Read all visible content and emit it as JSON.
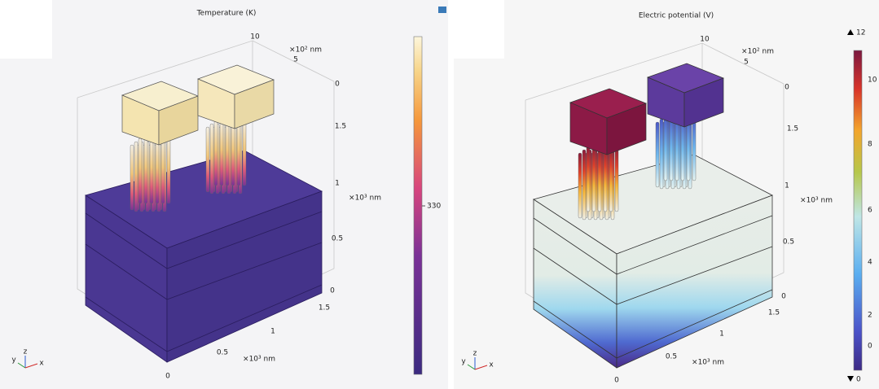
{
  "panels": [
    {
      "title": "Temperature (K)",
      "axes": {
        "top": [
          "10",
          "×10² nm",
          "5",
          "0"
        ],
        "right": [
          "1.5",
          "1",
          "×10³ nm",
          "0.5",
          "0"
        ],
        "bottom": [
          "1.5",
          "1",
          "0.5",
          "×10³ nm",
          "0"
        ]
      },
      "triad": [
        "y",
        "z",
        "x"
      ],
      "colorbar": {
        "labels": [
          "330"
        ]
      }
    },
    {
      "title": "Electric potential (V)",
      "axes": {
        "top": [
          "10",
          "×10² nm",
          "5",
          "0"
        ],
        "right": [
          "1.5",
          "1",
          "×10³ nm",
          "0.5",
          "0"
        ],
        "bottom": [
          "1.5",
          "1",
          "0.5",
          "×10³ nm",
          "0"
        ]
      },
      "triad": [
        "y",
        "z",
        "x"
      ],
      "colorbar": {
        "max_label": "12",
        "min_label": "0",
        "labels": [
          "10",
          "8",
          "6",
          "4",
          "2",
          "0"
        ]
      }
    }
  ]
}
